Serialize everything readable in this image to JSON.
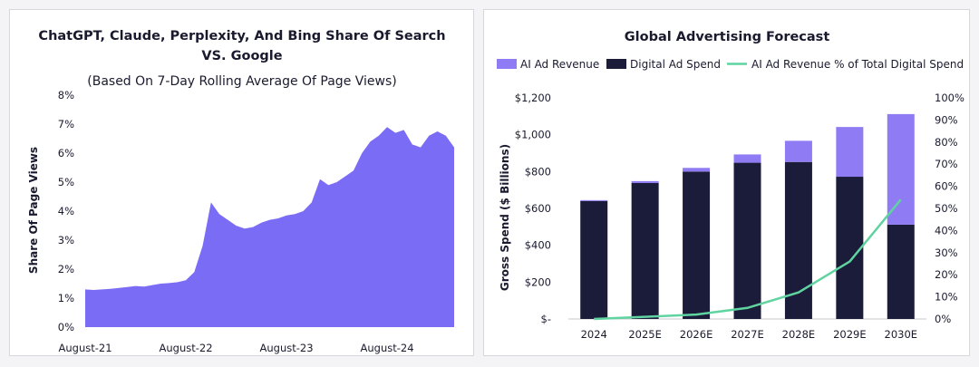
{
  "chart_data": [
    {
      "type": "area",
      "title_line1": "ChatGPT, Claude, Perplexity, And Bing Share Of Search",
      "title_line2": "VS. Google",
      "subtitle": "(Based On 7-Day Rolling Average Of Page Views)",
      "ylabel": "Share Of Page Views",
      "ylim": [
        0,
        8
      ],
      "y_ticks": [
        "0%",
        "1%",
        "2%",
        "3%",
        "4%",
        "5%",
        "6%",
        "7%",
        "8%"
      ],
      "x_ticks": [
        "August-21",
        "August-22",
        "August-23",
        "August-24"
      ],
      "color": "#7b6cf6",
      "series": [
        {
          "name": "Share Of Page Views (%)",
          "x_months": [
            0,
            1,
            2,
            3,
            4,
            5,
            6,
            7,
            8,
            9,
            10,
            11,
            12,
            13,
            14,
            15,
            16,
            17,
            18,
            19,
            20,
            21,
            22,
            23,
            24,
            25,
            26,
            27,
            28,
            29,
            30,
            31,
            32,
            33,
            34,
            35,
            36,
            37,
            38,
            39,
            40,
            41,
            42,
            43,
            44
          ],
          "values": [
            1.3,
            1.28,
            1.3,
            1.32,
            1.35,
            1.38,
            1.42,
            1.4,
            1.45,
            1.5,
            1.52,
            1.55,
            1.62,
            1.9,
            2.8,
            4.3,
            3.9,
            3.7,
            3.5,
            3.4,
            3.45,
            3.6,
            3.7,
            3.75,
            3.85,
            3.9,
            4.0,
            4.3,
            5.1,
            4.9,
            5.0,
            5.2,
            5.4,
            6.0,
            6.4,
            6.6,
            6.9,
            6.7,
            6.8,
            6.3,
            6.2,
            6.6,
            6.75,
            6.6,
            6.2
          ]
        }
      ]
    },
    {
      "type": "bar",
      "title": "Global Advertising Forecast",
      "categories": [
        "2024",
        "2025E",
        "2026E",
        "2027E",
        "2028E",
        "2029E",
        "2030E"
      ],
      "ylabel": "Gross Spend ($ Billions)",
      "ylim": [
        0,
        1200
      ],
      "y_ticks": [
        "$-",
        "$200",
        "$400",
        "$600",
        "$800",
        "$1,000",
        "$1,200"
      ],
      "y2lim": [
        0,
        100
      ],
      "y2_ticks": [
        "0%",
        "10%",
        "20%",
        "30%",
        "40%",
        "50%",
        "60%",
        "70%",
        "80%",
        "90%",
        "100%"
      ],
      "series": [
        {
          "name": "AI Ad Revenue",
          "color": "#8f7cf5",
          "values": [
            5,
            10,
            20,
            45,
            115,
            270,
            600
          ]
        },
        {
          "name": "Digital Ad Spend",
          "color": "#1b1b3a",
          "values": [
            640,
            738,
            800,
            848,
            852,
            772,
            512
          ]
        },
        {
          "name": "AI Ad Revenue % of Total Digital Spend",
          "color": "#5fd3a0",
          "axis": "right",
          "values": [
            0,
            1,
            2,
            5,
            12,
            26,
            54
          ]
        }
      ]
    }
  ]
}
